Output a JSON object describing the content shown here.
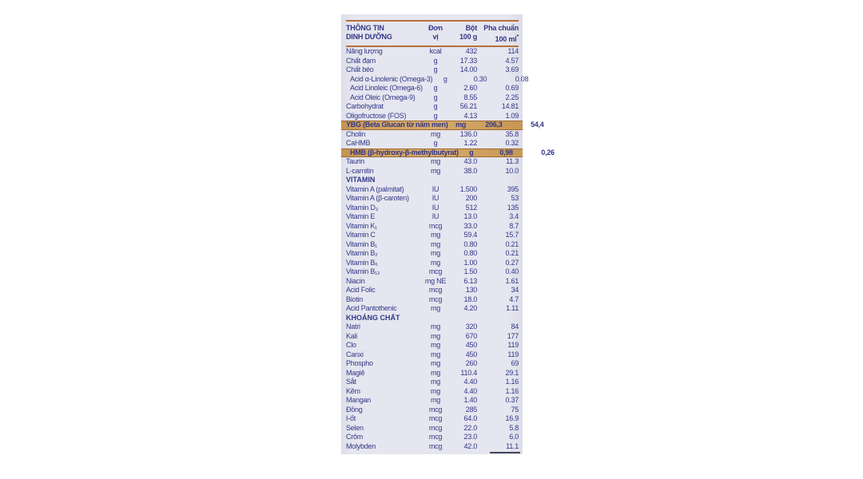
{
  "panel": {
    "bg_color": "#e5e6ef",
    "text_color": "#333687",
    "rule_color": "#b5713c",
    "highlight_color": "#d0a263"
  },
  "header": {
    "title_line1": "THÔNG TIN",
    "title_line2": "DINH DƯỠNG",
    "col_unit_line1": "Đơn",
    "col_unit_line2": "vị",
    "col_powder_line1": "Bột",
    "col_powder_line2": "100 g",
    "col_prepared_line1": "Pha chuẩn",
    "col_prepared_line2": "100 ml",
    "col_prepared_mark": "*"
  },
  "table": {
    "rows": [
      {
        "label": "Năng lượng",
        "unit": "kcal",
        "powder": "432",
        "prepared": "114"
      },
      {
        "label": "Chất đạm",
        "unit": "g",
        "powder": "17.33",
        "prepared": "4.57"
      },
      {
        "label": "Chất béo",
        "unit": "g",
        "powder": "14.00",
        "prepared": "3.69"
      },
      {
        "label": "Acid α-Linolenic (Omega-3)",
        "unit": "g",
        "powder": "0.30",
        "prepared": "0.08",
        "indent": true
      },
      {
        "label": "Acid Linoleic (Omega-6)",
        "unit": "g",
        "powder": "2.60",
        "prepared": "0.69",
        "indent": true
      },
      {
        "label": "Acid Oleic (Omega-9)",
        "unit": "g",
        "powder": "8.55",
        "prepared": "2.25",
        "indent": true
      },
      {
        "label": "Carbohydrat",
        "unit": "g",
        "powder": "56.21",
        "prepared": "14.81"
      },
      {
        "label": "Oligofructose (FOS)",
        "unit": "g",
        "powder": "4.13",
        "prepared": "1.09"
      },
      {
        "label": "YBG (Beta Glucan từ nấm men)",
        "unit": "mg",
        "powder": "206,3",
        "prepared": "54,4",
        "highlight": true
      },
      {
        "label": "Cholin",
        "unit": "mg",
        "powder": "136.0",
        "prepared": "35.8"
      },
      {
        "label": "CaHMB",
        "unit": "g",
        "powder": "1.22",
        "prepared": "0.32"
      },
      {
        "label": "HMB (β-hydroxy-β-methylbutyrat)",
        "unit": "g",
        "powder": "0,98",
        "prepared": "0,26",
        "highlight": true,
        "indent": true
      },
      {
        "label": "Taurin",
        "unit": "mg",
        "powder": "43.0",
        "prepared": "11.3"
      },
      {
        "label": "L-carnitin",
        "unit": "mg",
        "powder": "38.0",
        "prepared": "10.0"
      },
      {
        "label": "VITAMIN",
        "section": true
      },
      {
        "label": "Vitamin A (palmitat)",
        "unit": "IU",
        "powder": "1.500",
        "prepared": "395"
      },
      {
        "label": "Vitamin A (β-caroten)",
        "unit": "IU",
        "powder": "200",
        "prepared": "53"
      },
      {
        "label": "Vitamin D₃",
        "unit": "IU",
        "powder": "512",
        "prepared": "135"
      },
      {
        "label": "Vitamin E",
        "unit": "IU",
        "powder": "13.0",
        "prepared": "3.4"
      },
      {
        "label": "Vitamin K₁",
        "unit": "mcg",
        "powder": "33.0",
        "prepared": "8.7"
      },
      {
        "label": "Vitamin C",
        "unit": "mg",
        "powder": "59.4",
        "prepared": "15.7"
      },
      {
        "label": "Vitamin B₁",
        "unit": "mg",
        "powder": "0.80",
        "prepared": "0.21"
      },
      {
        "label": "Vitamin B₂",
        "unit": "mg",
        "powder": "0.80",
        "prepared": "0.21"
      },
      {
        "label": "Vitamin B₆",
        "unit": "mg",
        "powder": "1.00",
        "prepared": "0.27"
      },
      {
        "label": "Vitamin B₁₂",
        "unit": "mcg",
        "powder": "1.50",
        "prepared": "0.40"
      },
      {
        "label": "Niacin",
        "unit": "mg NE",
        "powder": "6.13",
        "prepared": "1.61"
      },
      {
        "label": "Acid Folic",
        "unit": "mcg",
        "powder": "130",
        "prepared": "34"
      },
      {
        "label": "Biotin",
        "unit": "mcg",
        "powder": "18.0",
        "prepared": "4.7"
      },
      {
        "label": "Acid Pantothenic",
        "unit": "mg",
        "powder": "4.20",
        "prepared": "1.11"
      },
      {
        "label": "KHOÁNG CHẤT",
        "section": true
      },
      {
        "label": "Natri",
        "unit": "mg",
        "powder": "320",
        "prepared": "84"
      },
      {
        "label": "Kali",
        "unit": "mg",
        "powder": "670",
        "prepared": "177"
      },
      {
        "label": "Clo",
        "unit": "mg",
        "powder": "450",
        "prepared": "119"
      },
      {
        "label": "Canxi",
        "unit": "mg",
        "powder": "450",
        "prepared": "119"
      },
      {
        "label": "Phospho",
        "unit": "mg",
        "powder": "260",
        "prepared": "69"
      },
      {
        "label": "Magiê",
        "unit": "mg",
        "powder": "110.4",
        "prepared": "29.1"
      },
      {
        "label": "Sắt",
        "unit": "mg",
        "powder": "4.40",
        "prepared": "1.16"
      },
      {
        "label": "Kẽm",
        "unit": "mg",
        "powder": "4.40",
        "prepared": "1.16"
      },
      {
        "label": "Mangan",
        "unit": "mg",
        "powder": "1.40",
        "prepared": "0.37"
      },
      {
        "label": "Đồng",
        "unit": "mcg",
        "powder": "285",
        "prepared": "75"
      },
      {
        "label": "I-ốt",
        "unit": "mcg",
        "powder": "64.0",
        "prepared": "16.9"
      },
      {
        "label": "Selen",
        "unit": "mcg",
        "powder": "22.0",
        "prepared": "5.8"
      },
      {
        "label": "Crôm",
        "unit": "mcg",
        "powder": "23.0",
        "prepared": "6.0"
      },
      {
        "label": "Molybden",
        "unit": "mcg",
        "powder": "42.0",
        "prepared": "11.1"
      }
    ]
  }
}
